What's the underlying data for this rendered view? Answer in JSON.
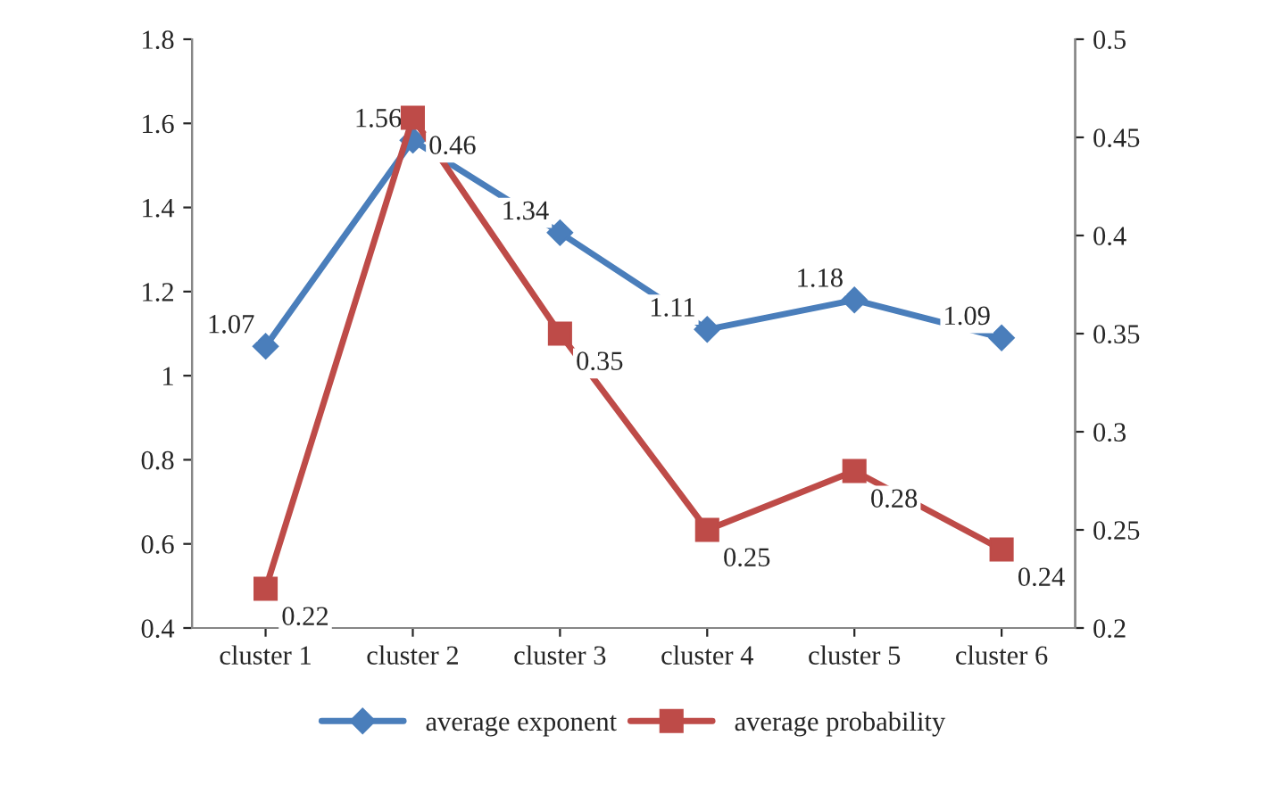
{
  "chart_data": {
    "type": "line",
    "categories": [
      "cluster 1",
      "cluster 2",
      "cluster 3",
      "cluster 4",
      "cluster 5",
      "cluster 6"
    ],
    "series": [
      {
        "name": "average exponent",
        "color": "#4a7ebb",
        "marker": "diamond",
        "values": [
          1.07,
          1.56,
          1.34,
          1.11,
          1.18,
          1.09
        ]
      },
      {
        "name": "average probability",
        "color": "#be4b48",
        "marker": "square",
        "axis": "y2",
        "values": [
          0.22,
          0.46,
          0.35,
          0.25,
          0.28,
          0.24
        ]
      }
    ],
    "ylim": [
      0.4,
      1.8
    ],
    "yticks": [
      0.4,
      0.6,
      0.8,
      1,
      1.2,
      1.4,
      1.6,
      1.8
    ],
    "y2lim": [
      0.2,
      0.5
    ],
    "y2ticks": [
      0.2,
      0.25,
      0.3,
      0.35,
      0.4,
      0.45,
      0.5
    ],
    "data_labels": true,
    "grid": false,
    "legend": "bottom",
    "line_style": "solid"
  }
}
